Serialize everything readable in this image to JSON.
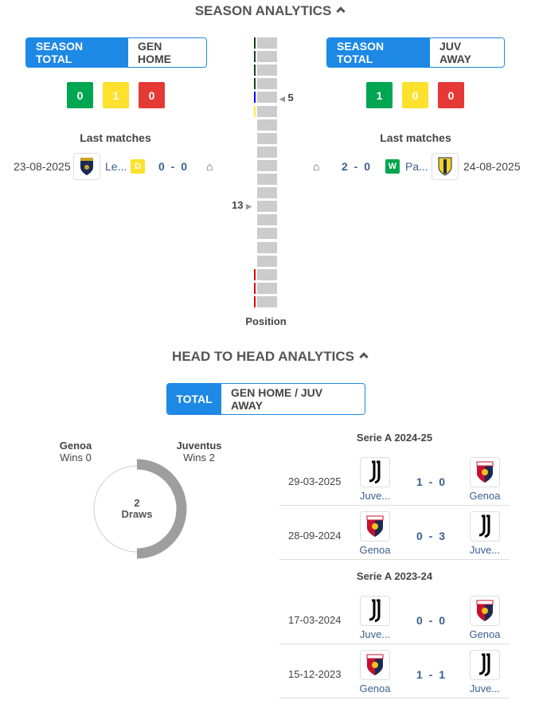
{
  "season": {
    "title": "SEASON ANALYTICS",
    "home": {
      "tab_total": "SEASON TOTAL",
      "tab_side": "GEN HOME",
      "wins": "0",
      "draws": "1",
      "losses": "0",
      "last_label": "Last matches",
      "match": {
        "date": "23-08-2025",
        "opponent": "Le...",
        "result": "D",
        "score": "0 - 0",
        "venue_icon": "home-icon"
      }
    },
    "away": {
      "tab_total": "SEASON TOTAL",
      "tab_side": "JUV AWAY",
      "wins": "1",
      "draws": "0",
      "losses": "0",
      "last_label": "Last matches",
      "match": {
        "date": "24-08-2025",
        "opponent": "Pa...",
        "result": "W",
        "score": "2 - 0",
        "venue_icon": "home-icon"
      }
    },
    "position": {
      "label": "Position",
      "rows": 20,
      "juv_position": "5",
      "gen_position": "13",
      "markers": {
        "champions": "#1b3d1b",
        "europa": "#0000ff",
        "conference": "#ffeb3b",
        "relegation": "#e00000"
      }
    }
  },
  "colors": {
    "win": "#00a651",
    "draw": "#fde12d",
    "loss": "#e53935",
    "accent": "#1e88e5"
  },
  "h2h": {
    "title": "HEAD TO HEAD ANALYTICS",
    "tab_total": "TOTAL",
    "tab_side": "GEN HOME / JUV AWAY",
    "home_team": "Genoa",
    "home_wins": "Wins 0",
    "away_team": "Juventus",
    "away_wins": "Wins 2",
    "draws_num": "2",
    "draws_label": "Draws",
    "seasons": [
      {
        "name": "Serie A 2024-25",
        "matches": [
          {
            "date": "29-03-2025",
            "home": "Juve...",
            "home_logo": "juventus",
            "score": "1 - 0",
            "away": "Genoa",
            "away_logo": "genoa"
          },
          {
            "date": "28-09-2024",
            "home": "Genoa",
            "home_logo": "genoa",
            "score": "0 - 3",
            "away": "Juve...",
            "away_logo": "juventus"
          }
        ]
      },
      {
        "name": "Serie A 2023-24",
        "matches": [
          {
            "date": "17-03-2024",
            "home": "Juve...",
            "home_logo": "juventus",
            "score": "0 - 0",
            "away": "Genoa",
            "away_logo": "genoa"
          },
          {
            "date": "15-12-2023",
            "home": "Genoa",
            "home_logo": "genoa",
            "score": "1 - 1",
            "away": "Juve...",
            "away_logo": "juventus"
          }
        ]
      }
    ]
  }
}
